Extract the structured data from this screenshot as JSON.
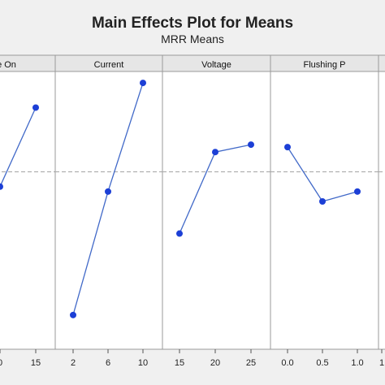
{
  "chart_data": {
    "type": "line",
    "title": "Main Effects Plot for Means",
    "subtitle": "MRR Means",
    "grid": false,
    "reference_line": "mean (dashed)",
    "ylim": [
      0,
      100
    ],
    "colors": {
      "series": "#4169c8",
      "marker": "#1c3fd6",
      "reference": "#b0b0b0",
      "header_bg": "#e6e6e6",
      "panel_bg": "#ffffff",
      "border": "#9a9a9a",
      "page_bg": "#f0f0f0"
    },
    "mean": 62,
    "panels": [
      {
        "name": "e On",
        "ticks": [
          "0",
          "15"
        ],
        "x": [
          "10",
          "15"
        ],
        "values": [
          56,
          88
        ]
      },
      {
        "name": "Current",
        "ticks": [
          "2",
          "6",
          "10"
        ],
        "x": [
          "2",
          "6",
          "10"
        ],
        "values": [
          4,
          54,
          98
        ]
      },
      {
        "name": "Voltage",
        "ticks": [
          "15",
          "20",
          "25"
        ],
        "x": [
          "15",
          "20",
          "25"
        ],
        "values": [
          37,
          70,
          73
        ]
      },
      {
        "name": "Flushing P",
        "ticks": [
          "0.0",
          "0.5",
          "1.0"
        ],
        "x": [
          "0.0",
          "0.5",
          "1.0"
        ],
        "values": [
          72,
          50,
          54
        ]
      },
      {
        "name": "",
        "ticks": [
          "1"
        ],
        "x": [],
        "values": []
      }
    ]
  }
}
